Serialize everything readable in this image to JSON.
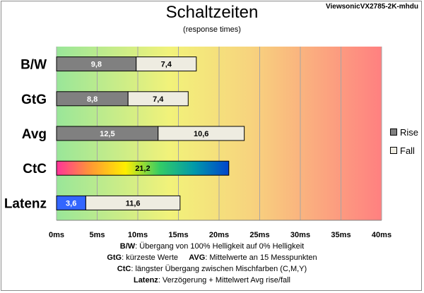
{
  "header": {
    "title": "Schaltzeiten",
    "subtitle": "(response times)",
    "model": "ViewsonicVX2785-2K-mhdu"
  },
  "chart_data": {
    "type": "bar",
    "orientation": "horizontal",
    "stacked": true,
    "categories": [
      "B/W",
      "GtG",
      "Avg",
      "CtC",
      "Latenz"
    ],
    "series": [
      {
        "name": "Rise",
        "values": [
          9.8,
          8.8,
          12.5,
          21.2,
          3.6
        ]
      },
      {
        "name": "Fall",
        "values": [
          7.4,
          7.4,
          10.6,
          null,
          11.6
        ]
      }
    ],
    "value_labels": {
      "Rise": [
        "9,8",
        "8,8",
        "12,5",
        "21,2",
        "3,6"
      ],
      "Fall": [
        "7,4",
        "7,4",
        "10,6",
        "",
        "11,6"
      ]
    },
    "x_ticks": [
      "0ms",
      "5ms",
      "10ms",
      "15ms",
      "20ms",
      "25ms",
      "30ms",
      "35ms",
      "40ms"
    ],
    "xlim": [
      0,
      40
    ],
    "grid": true,
    "legend_position": "right",
    "colors": {
      "Rise": "#808080",
      "Fall": "#eeece1",
      "latenz_rise": "#3366ff",
      "ctc_gradient": [
        "#ff3399",
        "#ff9933",
        "#ffee00",
        "#33cc66",
        "#0099aa",
        "#0044cc"
      ],
      "background_gradient": [
        "#99e699",
        "#f2f27a",
        "#f7d37e",
        "#ff8080"
      ]
    }
  },
  "footer": {
    "line1": {
      "key": "B/W",
      "text": ":  Übergang von 100% Helligkeit auf 0% Helligkeit"
    },
    "line2": {
      "key1": "GtG",
      "text1": ": kürzeste  Werte",
      "key2": "AVG",
      "text2": ": Mittelwerte  an 15 Messpunkten"
    },
    "line3": {
      "key": "CtC",
      "text": ": längster Übergang  zwischen Mischfarben  (C,M,Y)"
    },
    "line4": {
      "key": "Latenz",
      "text": ": Verzögerung  + Mittelwert  Avg rise/fall"
    }
  }
}
